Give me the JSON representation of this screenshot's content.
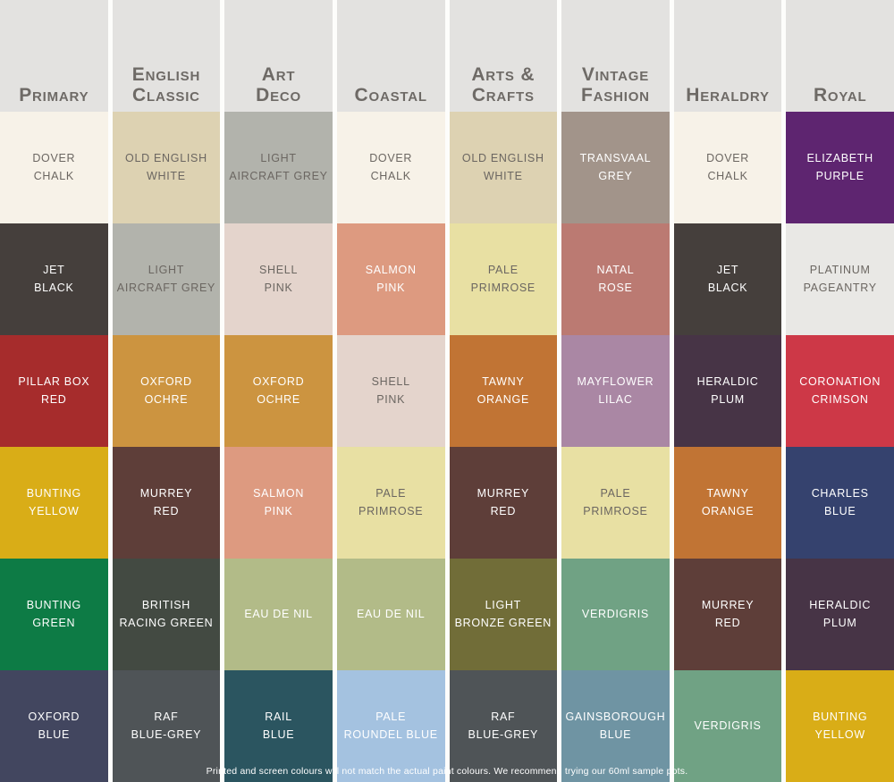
{
  "page": {
    "gutter_color": "#fdfdfb"
  },
  "header": {
    "background": "#e3e2e0",
    "text_color": "#6e6a66"
  },
  "palette": {
    "label_dark_color": "#6b6661",
    "label_light_color": "#ffffff",
    "columns": [
      {
        "title": "Primary",
        "swatches": [
          {
            "name": "DOVER\nCHALK",
            "color": "#f7f2e8",
            "text": "dark"
          },
          {
            "name": "JET\nBLACK",
            "color": "#453f3c",
            "text": "light"
          },
          {
            "name": "PILLAR BOX\nRED",
            "color": "#a62c2c",
            "text": "light"
          },
          {
            "name": "BUNTING\nYELLOW",
            "color": "#d9ad17",
            "text": "light"
          },
          {
            "name": "BUNTING\nGREEN",
            "color": "#0d7b45",
            "text": "light"
          },
          {
            "name": "OXFORD\nBLUE",
            "color": "#42465f",
            "text": "light"
          }
        ]
      },
      {
        "title": "English\nClassic",
        "swatches": [
          {
            "name": "OLD ENGLISH\nWHITE",
            "color": "#ddd2b2",
            "text": "dark"
          },
          {
            "name": "LIGHT\nAIRCRAFT GREY",
            "color": "#b2b3ac",
            "text": "dark"
          },
          {
            "name": "OXFORD\nOCHRE",
            "color": "#cc9440",
            "text": "light"
          },
          {
            "name": "MURREY\nRED",
            "color": "#5e3e39",
            "text": "light"
          },
          {
            "name": "BRITISH\nRACING GREEN",
            "color": "#434a42",
            "text": "light"
          },
          {
            "name": "RAF\nBLUE-GREY",
            "color": "#4f5457",
            "text": "light"
          }
        ]
      },
      {
        "title": "Art\nDeco",
        "swatches": [
          {
            "name": "LIGHT\nAIRCRAFT GREY",
            "color": "#b2b3ac",
            "text": "dark"
          },
          {
            "name": "SHELL\nPINK",
            "color": "#e4d4cc",
            "text": "dark"
          },
          {
            "name": "OXFORD\nOCHRE",
            "color": "#cc9440",
            "text": "light"
          },
          {
            "name": "SALMON\nPINK",
            "color": "#dd9a80",
            "text": "light"
          },
          {
            "name": "EAU DE NIL",
            "color": "#b2bb88",
            "text": "light"
          },
          {
            "name": "RAIL\nBLUE",
            "color": "#2b5560",
            "text": "light"
          }
        ]
      },
      {
        "title": "Coastal",
        "swatches": [
          {
            "name": "DOVER\nCHALK",
            "color": "#f7f2e8",
            "text": "dark"
          },
          {
            "name": "SALMON\nPINK",
            "color": "#dd9a80",
            "text": "light"
          },
          {
            "name": "SHELL\nPINK",
            "color": "#e4d4cc",
            "text": "dark"
          },
          {
            "name": "PALE\nPRIMROSE",
            "color": "#e8e0a3",
            "text": "dark"
          },
          {
            "name": "EAU DE NIL",
            "color": "#b2bb88",
            "text": "light"
          },
          {
            "name": "PALE\nROUNDEL BLUE",
            "color": "#a4c2e0",
            "text": "light"
          }
        ]
      },
      {
        "title": "Arts &\nCrafts",
        "swatches": [
          {
            "name": "OLD ENGLISH\nWHITE",
            "color": "#ddd2b2",
            "text": "dark"
          },
          {
            "name": "PALE\nPRIMROSE",
            "color": "#e8e0a3",
            "text": "dark"
          },
          {
            "name": "TAWNY\nORANGE",
            "color": "#c17434",
            "text": "light"
          },
          {
            "name": "MURREY\nRED",
            "color": "#5e3e39",
            "text": "light"
          },
          {
            "name": "LIGHT\nBRONZE GREEN",
            "color": "#716d38",
            "text": "light"
          },
          {
            "name": "RAF\nBLUE-GREY",
            "color": "#4f5457",
            "text": "light"
          }
        ]
      },
      {
        "title": "Vintage\nFashion",
        "swatches": [
          {
            "name": "TRANSVAAL\nGREY",
            "color": "#a2948a",
            "text": "light"
          },
          {
            "name": "NATAL\nROSE",
            "color": "#bb7a72",
            "text": "light"
          },
          {
            "name": "MAYFLOWER\nLILAC",
            "color": "#aa87a4",
            "text": "light"
          },
          {
            "name": "PALE\nPRIMROSE",
            "color": "#e8e0a3",
            "text": "dark"
          },
          {
            "name": "VERDIGRIS",
            "color": "#70a284",
            "text": "light"
          },
          {
            "name": "GAINSBOROUGH\nBLUE",
            "color": "#6f94a3",
            "text": "light"
          }
        ]
      },
      {
        "title": "Heraldry",
        "swatches": [
          {
            "name": "DOVER\nCHALK",
            "color": "#f7f2e8",
            "text": "dark"
          },
          {
            "name": "JET\nBLACK",
            "color": "#453f3c",
            "text": "light"
          },
          {
            "name": "HERALDIC\nPLUM",
            "color": "#473446",
            "text": "light"
          },
          {
            "name": "TAWNY\nORANGE",
            "color": "#c17434",
            "text": "light"
          },
          {
            "name": "MURREY\nRED",
            "color": "#5e3e39",
            "text": "light"
          },
          {
            "name": "VERDIGRIS",
            "color": "#70a284",
            "text": "light"
          }
        ]
      },
      {
        "title": "Royal",
        "swatches": [
          {
            "name": "ELIZABETH\nPURPLE",
            "color": "#5e2570",
            "text": "light"
          },
          {
            "name": "PLATINUM\nPAGEANTRY",
            "color": "#e9e8e5",
            "text": "dark"
          },
          {
            "name": "CORONATION\nCRIMSON",
            "color": "#cd3847",
            "text": "light"
          },
          {
            "name": "CHARLES\nBLUE",
            "color": "#35426e",
            "text": "light"
          },
          {
            "name": "HERALDIC\nPLUM",
            "color": "#473446",
            "text": "light"
          },
          {
            "name": "BUNTING\nYELLOW",
            "color": "#d9ad17",
            "text": "light"
          }
        ]
      }
    ]
  },
  "footer": {
    "text": "Printed and screen colours will not match the actual paint colours. We recommend trying our 60ml sample pots.",
    "text_color": "#ffffff"
  }
}
